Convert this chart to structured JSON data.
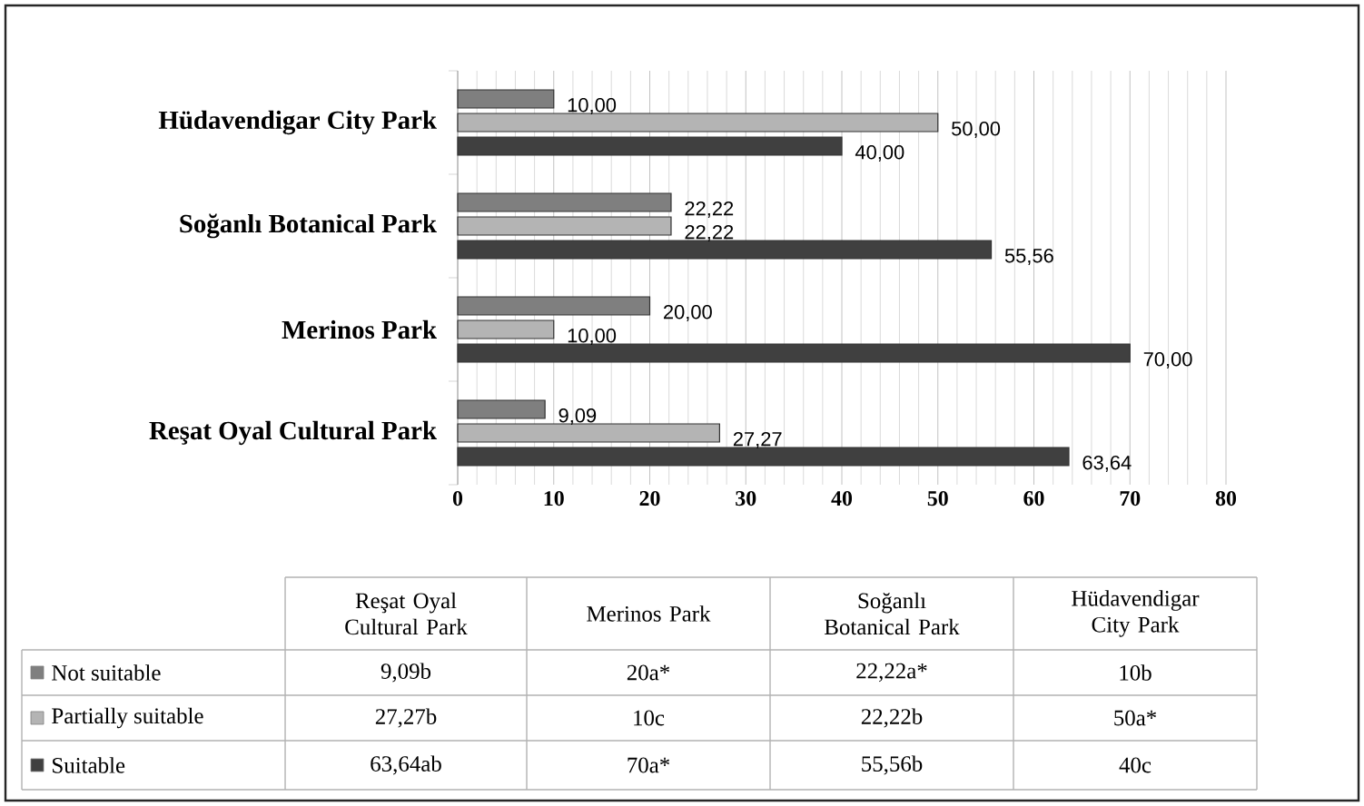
{
  "chart_data": {
    "type": "bar",
    "orientation": "horizontal",
    "categories": [
      "Hüdavendigar City Park",
      "Soğanlı Botanical Park",
      "Merinos Park",
      "Reşat Oyal Cultural Park"
    ],
    "series": [
      {
        "name": "Not suitable",
        "color": "#7f7f7f",
        "values": [
          10,
          22.22,
          20,
          9.09
        ],
        "value_labels": [
          "10,00",
          "22,22",
          "20,00",
          "9,09"
        ]
      },
      {
        "name": "Partially suitable",
        "color": "#b4b4b4",
        "values": [
          50,
          22.22,
          10,
          27.27
        ],
        "value_labels": [
          "50,00",
          "22,22",
          "10,00",
          "27,27"
        ]
      },
      {
        "name": "Suitable",
        "color": "#404040",
        "values": [
          40,
          55.56,
          70,
          63.64
        ],
        "value_labels": [
          "40,00",
          "55,56",
          "70,00",
          "63,64"
        ]
      }
    ],
    "xlim": [
      0,
      80
    ],
    "xticks": [
      0,
      10,
      20,
      30,
      40,
      50,
      60,
      70,
      80
    ],
    "grid": "x",
    "legend": "bottom",
    "annotations": [
      "9,09b",
      "20a*",
      "22,22a*",
      "10b",
      "27,27b",
      "10c",
      "22,22b",
      "50a*",
      "63,64ab",
      "70a*",
      "55,56b",
      "40c"
    ]
  }
}
